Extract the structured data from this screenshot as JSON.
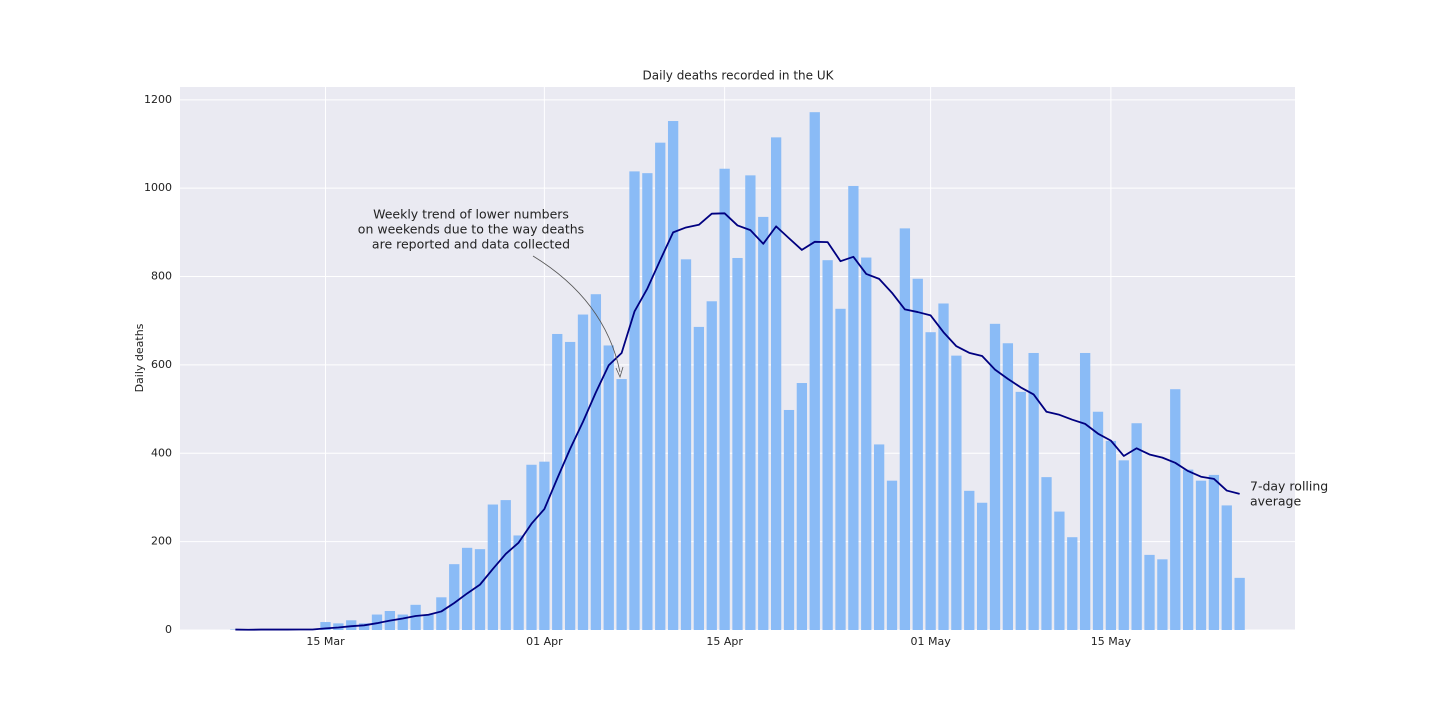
{
  "chart_data": {
    "type": "bar",
    "title": "Daily deaths recorded in the UK",
    "y_label": "Daily deaths",
    "x": [
      8,
      9,
      10,
      11,
      12,
      13,
      14,
      15,
      16,
      17,
      18,
      19,
      20,
      21,
      22,
      23,
      24,
      25,
      26,
      27,
      28,
      29,
      30,
      31,
      32,
      33,
      34,
      35,
      36,
      37,
      38,
      39,
      40,
      41,
      42,
      43,
      44,
      45,
      46,
      47,
      48,
      49,
      50,
      51,
      52,
      53,
      54,
      55,
      56,
      57,
      58,
      59,
      60,
      61,
      62,
      63,
      64,
      65,
      66,
      67,
      68,
      69,
      70,
      71,
      72,
      73,
      74,
      75,
      76,
      77,
      78,
      79,
      80,
      81,
      82,
      83,
      84,
      85,
      86
    ],
    "values": [
      1,
      0,
      2,
      1,
      1,
      2,
      1,
      18,
      15,
      22,
      15,
      35,
      43,
      35,
      57,
      35,
      74,
      149,
      186,
      183,
      284,
      294,
      214,
      374,
      381,
      670,
      652,
      714,
      760,
      644,
      568,
      1038,
      1034,
      1103,
      1152,
      839,
      686,
      744,
      1044,
      842,
      1029,
      935,
      1115,
      498,
      559,
      1172,
      837,
      727,
      1005,
      843,
      420,
      338,
      909,
      795,
      674,
      739,
      621,
      315,
      288,
      693,
      649,
      539,
      627,
      346,
      268,
      210,
      627,
      494,
      428,
      384,
      468,
      170,
      160,
      545,
      363,
      338,
      351,
      282,
      118
    ],
    "color": "#8abbf6",
    "rolling_average": {
      "label": [
        "7-day rolling",
        "average"
      ],
      "color": "#000080",
      "values": [
        1,
        0.5,
        1,
        1,
        1,
        1.2,
        1.1,
        3.6,
        5.7,
        8.6,
        10.6,
        15.4,
        21.3,
        26.1,
        31.7,
        34.6,
        42,
        61.1,
        82.7,
        102.7,
        138.3,
        172.1,
        197.7,
        240.6,
        273.7,
        342.9,
        409.9,
        471.3,
        537.9,
        599.3,
        627,
        720.9,
        772.9,
        837.3,
        899.9,
        911.1,
        917.1,
        942.3,
        943.1,
        915.7,
        905.1,
        874.1,
        913.6,
        886.7,
        860.3,
        878.6,
        877.9,
        834.7,
        844.7,
        805.9,
        794.7,
        763.1,
        725.6,
        719.6,
        712,
        674,
        642.3,
        627.3,
        620.1,
        589.3,
        568.4,
        549.1,
        533.1,
        493.9,
        487.1,
        476,
        466.6,
        444.4,
        428.6,
        393.9,
        411.3,
        397.3,
        390.1,
        378.4,
        359.7,
        346.9,
        342.1,
        315.6,
        308.1
      ]
    },
    "annotation": [
      "Weekly trend of lower numbers",
      "on weekends due to the way deaths",
      "are reported and data collected"
    ],
    "xlim": [
      3.7,
      90.3
    ],
    "xticks": [
      {
        "value": 15,
        "label": "15 Mar"
      },
      {
        "value": 32,
        "label": "01 Apr"
      },
      {
        "value": 46,
        "label": "15 Apr"
      },
      {
        "value": 62,
        "label": "01 May"
      },
      {
        "value": 76,
        "label": "15 May"
      }
    ],
    "ylim": [
      0,
      1229
    ],
    "yticks": [
      0,
      200,
      400,
      600,
      800,
      1000,
      1200
    ],
    "grid": true
  }
}
